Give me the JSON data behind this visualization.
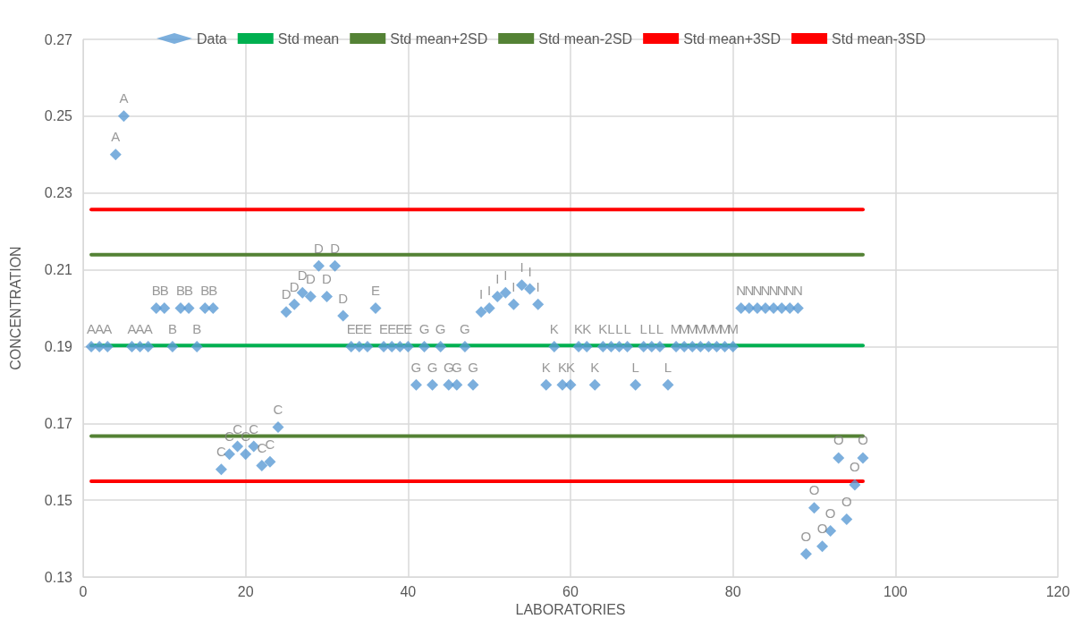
{
  "chart_data": {
    "type": "scatter",
    "xlabel": "LABORATORIES",
    "ylabel": "CONCENTRATION",
    "xlim": [
      0,
      120
    ],
    "xticks": [
      0,
      20,
      40,
      60,
      80,
      100,
      120
    ],
    "ylim": [
      0.13,
      0.27
    ],
    "yticks": [
      0.13,
      0.15,
      0.17,
      0.19,
      0.21,
      0.23,
      0.25,
      0.27
    ],
    "grid": true,
    "legend": "top",
    "series": [
      {
        "name": "Data",
        "marker": "diamond",
        "color": "#5b9bd5",
        "x": [
          1,
          2,
          3,
          4,
          5,
          6,
          7,
          8,
          9,
          10,
          11,
          12,
          13,
          14,
          15,
          16,
          17,
          18,
          19,
          20,
          21,
          22,
          23,
          24,
          25,
          26,
          27,
          28,
          29,
          30,
          31,
          32,
          33,
          34,
          35,
          36,
          37,
          38,
          39,
          40,
          41,
          42,
          43,
          44,
          45,
          46,
          47,
          48,
          49,
          50,
          51,
          52,
          53,
          54,
          55,
          56,
          57,
          58,
          59,
          60,
          61,
          62,
          63,
          64,
          65,
          66,
          67,
          68,
          69,
          70,
          71,
          72,
          73,
          74,
          75,
          76,
          77,
          78,
          79,
          80,
          81,
          82,
          83,
          84,
          85,
          86,
          87,
          88,
          89,
          90,
          91,
          92,
          93,
          94,
          95,
          96
        ],
        "values": [
          0.19,
          0.19,
          0.19,
          0.24,
          0.25,
          0.19,
          0.19,
          0.19,
          0.2,
          0.2,
          0.19,
          0.2,
          0.2,
          0.19,
          0.2,
          0.2,
          0.158,
          0.162,
          0.164,
          0.162,
          0.164,
          0.159,
          0.16,
          0.169,
          0.199,
          0.201,
          0.204,
          0.203,
          0.211,
          0.203,
          0.211,
          0.198,
          0.19,
          0.19,
          0.19,
          0.2,
          0.19,
          0.19,
          0.19,
          0.19,
          0.18,
          0.19,
          0.18,
          0.19,
          0.18,
          0.18,
          0.19,
          0.18,
          0.199,
          0.2,
          0.203,
          0.204,
          0.201,
          0.206,
          0.205,
          0.201,
          0.18,
          0.19,
          0.18,
          0.18,
          0.19,
          0.19,
          0.18,
          0.19,
          0.19,
          0.19,
          0.19,
          0.18,
          0.19,
          0.19,
          0.19,
          0.18,
          0.19,
          0.19,
          0.19,
          0.19,
          0.19,
          0.19,
          0.19,
          0.19,
          0.2,
          0.2,
          0.2,
          0.2,
          0.2,
          0.2,
          0.2,
          0.2,
          0.136,
          0.148,
          0.138,
          0.142,
          0.161,
          0.145,
          0.154,
          0.161
        ],
        "value_labels": [
          "A",
          "A",
          "A",
          "A",
          "A",
          "A",
          "A",
          "A",
          "B",
          "B",
          "B",
          "B",
          "B",
          "B",
          "B",
          "B",
          "C",
          "C",
          "C",
          "C",
          "C",
          "C",
          "C",
          "C",
          "D",
          "D",
          "D",
          "D",
          "D",
          "D",
          "D",
          "D",
          "E",
          "E",
          "E",
          "E",
          "E",
          "E",
          "E",
          "E",
          "G",
          "G",
          "G",
          "G",
          "G",
          "G",
          "G",
          "G",
          "I",
          "I",
          "I",
          "I",
          "I",
          "I",
          "I",
          "I",
          "K",
          "K",
          "K",
          "K",
          "K",
          "K",
          "K",
          "K",
          "L",
          "L",
          "L",
          "L",
          "L",
          "L",
          "L",
          "L",
          "M",
          "M",
          "M",
          "M",
          "M",
          "M",
          "M",
          "M",
          "N",
          "N",
          "N",
          "N",
          "N",
          "N",
          "N",
          "N",
          "O",
          "O",
          "O",
          "O",
          "O",
          "O",
          "O",
          "O"
        ]
      },
      {
        "name": "Std mean",
        "type": "line",
        "marker": "none",
        "color": "#00b050",
        "x": [
          1,
          96
        ],
        "values": [
          0.1903,
          0.1903
        ]
      },
      {
        "name": "Std mean+2SD",
        "type": "line",
        "marker": "none",
        "color": "#548235",
        "x": [
          1,
          96
        ],
        "values": [
          0.2139,
          0.2139
        ]
      },
      {
        "name": "Std mean-2SD",
        "type": "line",
        "marker": "none",
        "color": "#548235",
        "x": [
          1,
          96
        ],
        "values": [
          0.1667,
          0.1667
        ]
      },
      {
        "name": "Std mean+3SD",
        "type": "line",
        "marker": "none",
        "color": "#ff0000",
        "x": [
          1,
          96
        ],
        "values": [
          0.2257,
          0.2257
        ]
      },
      {
        "name": "Std mean-3SD",
        "type": "line",
        "marker": "none",
        "color": "#ff0000",
        "x": [
          1,
          96
        ],
        "values": [
          0.1549,
          0.1549
        ]
      }
    ]
  }
}
